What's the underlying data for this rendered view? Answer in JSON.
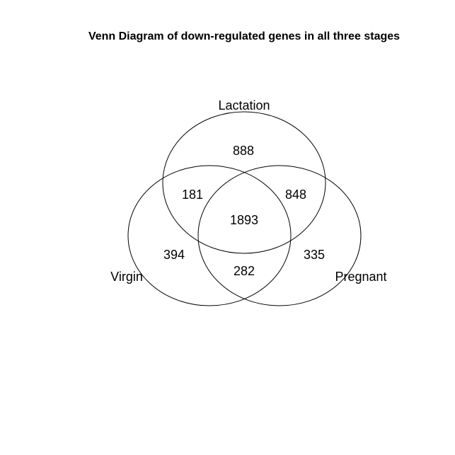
{
  "title": "Venn Diagram of down-regulated genes in all three stages",
  "sets": {
    "lactation": "Lactation",
    "virgin": "Virgin",
    "pregnant": "Pregnant"
  },
  "regions": {
    "lactation_only": "888",
    "virgin_lactation": "181",
    "lactation_pregnant": "848",
    "all_three": "1893",
    "virgin_only": "394",
    "pregnant_only": "335",
    "virgin_pregnant": "282"
  },
  "colors": {
    "stroke": "#000000",
    "text": "#000000",
    "background": "#ffffff"
  }
}
